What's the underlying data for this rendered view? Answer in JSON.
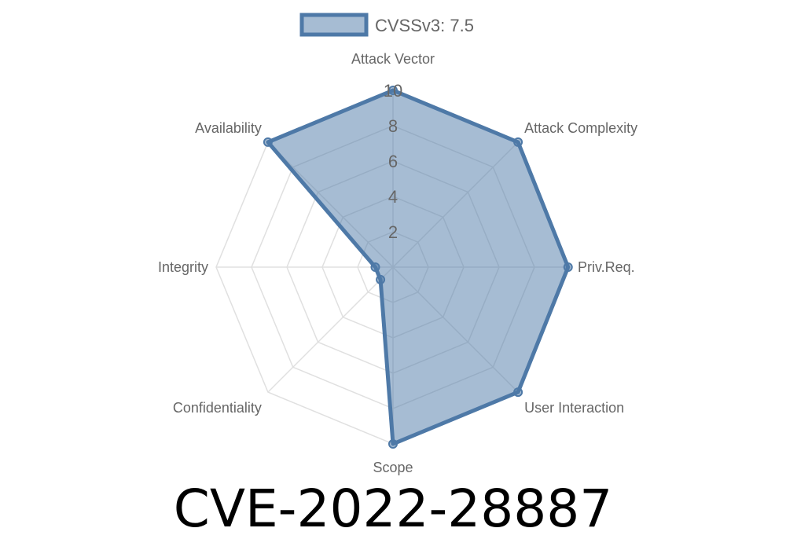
{
  "chart_data": {
    "type": "radar",
    "title": "CVE-2022-28887",
    "categories": [
      "Attack Vector",
      "Attack Complexity",
      "Priv.Req.",
      "User Interaction",
      "Scope",
      "Confidentiality",
      "Integrity",
      "Availability"
    ],
    "series": [
      {
        "name": "CVSSv3: 7.5",
        "values": [
          10,
          10,
          9.9,
          10,
          10,
          1,
          1,
          10
        ]
      }
    ],
    "rlim": [
      0,
      10
    ],
    "ticks": [
      "2",
      "4",
      "6",
      "8",
      "10"
    ],
    "tick_values": [
      2,
      4,
      6,
      8,
      10
    ],
    "grid": true,
    "legend_placement": "top",
    "colors": {
      "stroke": "#4e79a7",
      "fill": "rgba(78,121,167,0.5)",
      "grid": "#e0e0e0"
    }
  }
}
